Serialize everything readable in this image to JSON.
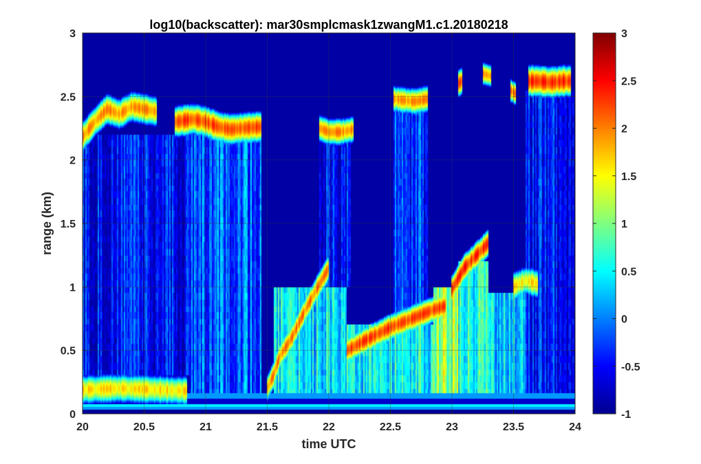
{
  "chart_data": {
    "type": "heatmap",
    "title": "log10(backscatter): mar30smplcmask1zwangM1.c1.20180218",
    "xlabel": "time UTC",
    "ylabel": "range (km)",
    "xlim": [
      20,
      24
    ],
    "ylim": [
      0,
      3
    ],
    "xticks": [
      "20",
      "20.5",
      "21",
      "21.5",
      "22",
      "22.5",
      "23",
      "23.5",
      "24"
    ],
    "yticks": [
      "0",
      "0.5",
      "1",
      "1.5",
      "2",
      "2.5",
      "3"
    ],
    "colorbar": {
      "range": [
        -1,
        3
      ],
      "ticks": [
        "-1",
        "-0.5",
        "0",
        "0.5",
        "1",
        "1.5",
        "2",
        "2.5",
        "3"
      ],
      "colormap": "jet"
    },
    "grid": true,
    "background_value": -0.85,
    "surface_bands": [
      {
        "y_range": [
          0.03,
          0.05
        ],
        "value": 0.1
      },
      {
        "y_range": [
          0.05,
          0.08
        ],
        "value": 0.45
      },
      {
        "y_range": [
          0.08,
          0.12
        ],
        "value": -0.7
      },
      {
        "y_range": [
          0.12,
          0.16
        ],
        "value": 0.1
      }
    ],
    "cloud_layers": [
      {
        "x": [
          20.0,
          20.1,
          20.2,
          20.3,
          20.4,
          20.5,
          20.6
        ],
        "height": [
          2.18,
          2.3,
          2.4,
          2.36,
          2.42,
          2.4,
          2.38
        ],
        "thickness": 0.08,
        "peak": 1.9
      },
      {
        "x": [
          20.75,
          20.9,
          21.0,
          21.1,
          21.2,
          21.3,
          21.45
        ],
        "height": [
          2.3,
          2.32,
          2.3,
          2.26,
          2.24,
          2.25,
          2.26
        ],
        "thickness": 0.08,
        "peak": 2.2
      },
      {
        "x": [
          21.92,
          22.0,
          22.1,
          22.2
        ],
        "height": [
          2.25,
          2.22,
          2.22,
          2.24
        ],
        "thickness": 0.07,
        "peak": 1.9
      },
      {
        "x": [
          22.53,
          22.6,
          22.7,
          22.8
        ],
        "height": [
          2.48,
          2.47,
          2.46,
          2.48
        ],
        "thickness": 0.07,
        "peak": 1.9
      },
      {
        "x": [
          23.05,
          23.08
        ],
        "height": [
          2.6,
          2.62
        ],
        "thickness": 0.07,
        "peak": 2.1
      },
      {
        "x": [
          23.25,
          23.32
        ],
        "height": [
          2.68,
          2.66
        ],
        "thickness": 0.06,
        "peak": 1.8
      },
      {
        "x": [
          23.47,
          23.52
        ],
        "height": [
          2.55,
          2.52
        ],
        "thickness": 0.06,
        "peak": 2.0
      },
      {
        "x": [
          23.62,
          23.7,
          23.8,
          23.9,
          23.97
        ],
        "height": [
          2.62,
          2.62,
          2.61,
          2.62,
          2.62
        ],
        "thickness": 0.08,
        "peak": 2.3
      },
      {
        "x": [
          21.5,
          21.55,
          21.6,
          21.7,
          21.8,
          21.9,
          22.0
        ],
        "height": [
          0.2,
          0.3,
          0.45,
          0.6,
          0.8,
          0.98,
          1.15
        ],
        "thickness": 0.07,
        "peak": 2.0
      },
      {
        "x": [
          22.15,
          22.3,
          22.5,
          22.7,
          22.85,
          22.95
        ],
        "height": [
          0.5,
          0.58,
          0.68,
          0.76,
          0.82,
          0.85
        ],
        "thickness": 0.07,
        "peak": 2.2
      },
      {
        "x": [
          23.0,
          23.1,
          23.2,
          23.3
        ],
        "height": [
          0.98,
          1.15,
          1.25,
          1.35
        ],
        "thickness": 0.07,
        "peak": 2.3
      },
      {
        "x": [
          23.5,
          23.6,
          23.7
        ],
        "height": [
          1.0,
          1.05,
          1.02
        ],
        "thickness": 0.08,
        "peak": 1.6
      },
      {
        "x": [
          20.0,
          20.3,
          20.6,
          20.85
        ],
        "height": [
          0.19,
          0.2,
          0.19,
          0.18
        ],
        "thickness": 0.08,
        "peak": 1.6
      }
    ],
    "column_ranges": [
      {
        "x_range": [
          20.0,
          20.87
        ],
        "top": 2.2,
        "base": 0.3,
        "value": -0.45
      },
      {
        "x_range": [
          20.87,
          21.45
        ],
        "top": 2.2,
        "base": 0.16,
        "value": -0.1
      },
      {
        "x_range": [
          21.55,
          22.15
        ],
        "top": 1.0,
        "base": 0.16,
        "value": 0.4
      },
      {
        "x_range": [
          21.92,
          22.18
        ],
        "top": 2.2,
        "base": 1.0,
        "value": -0.5
      },
      {
        "x_range": [
          22.15,
          23.0
        ],
        "top": 0.7,
        "base": 0.16,
        "value": 0.5
      },
      {
        "x_range": [
          22.53,
          22.8
        ],
        "top": 2.45,
        "base": 0.7,
        "value": -0.3
      },
      {
        "x_range": [
          22.85,
          23.05
        ],
        "top": 1.0,
        "base": 0.16,
        "value": 1.1
      },
      {
        "x_range": [
          23.05,
          23.3
        ],
        "top": 1.2,
        "base": 0.16,
        "value": 0.55
      },
      {
        "x_range": [
          23.3,
          23.6
        ],
        "top": 0.95,
        "base": 0.16,
        "value": 0.3
      },
      {
        "x_range": [
          23.6,
          24.0
        ],
        "top": 2.55,
        "base": 0.16,
        "value": -0.45
      }
    ]
  }
}
